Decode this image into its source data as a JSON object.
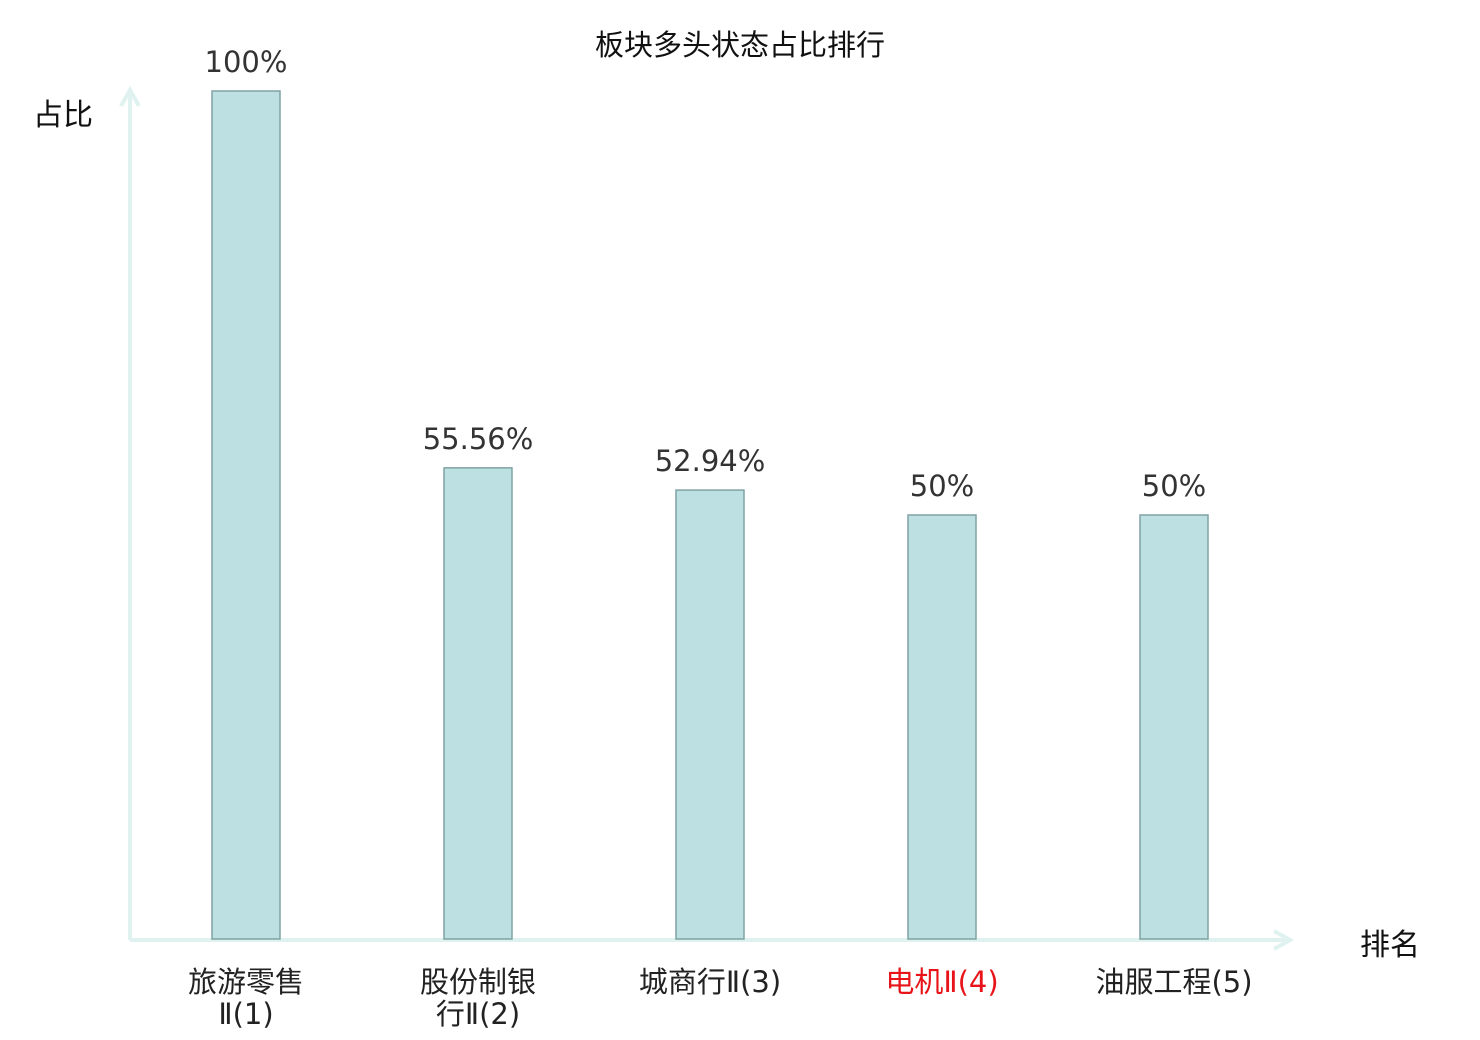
{
  "chart_data": {
    "type": "bar",
    "title": "板块多头状态占比排行",
    "xlabel": "排名",
    "ylabel": "占比",
    "ylim": [
      0,
      100
    ],
    "categories": [
      {
        "line1": "旅游零售",
        "line2": "Ⅱ(1)"
      },
      {
        "line1": "股份制银",
        "line2": "行Ⅱ(2)"
      },
      {
        "line1": "城商行Ⅱ(3)",
        "line2": ""
      },
      {
        "line1": "电机Ⅱ(4)",
        "line2": ""
      },
      {
        "line1": "油服工程(5)",
        "line2": ""
      }
    ],
    "values": [
      100,
      55.56,
      52.94,
      50,
      50
    ],
    "value_labels": [
      "100%",
      "55.56%",
      "52.94%",
      "50%",
      "50%"
    ],
    "highlight_index": 3,
    "grid": false,
    "colors": {
      "bar_fill": "#bde0e2",
      "bar_stroke": "#7fa3a4",
      "axis": "#dff2ef",
      "highlight_text": "#e8141a"
    }
  }
}
